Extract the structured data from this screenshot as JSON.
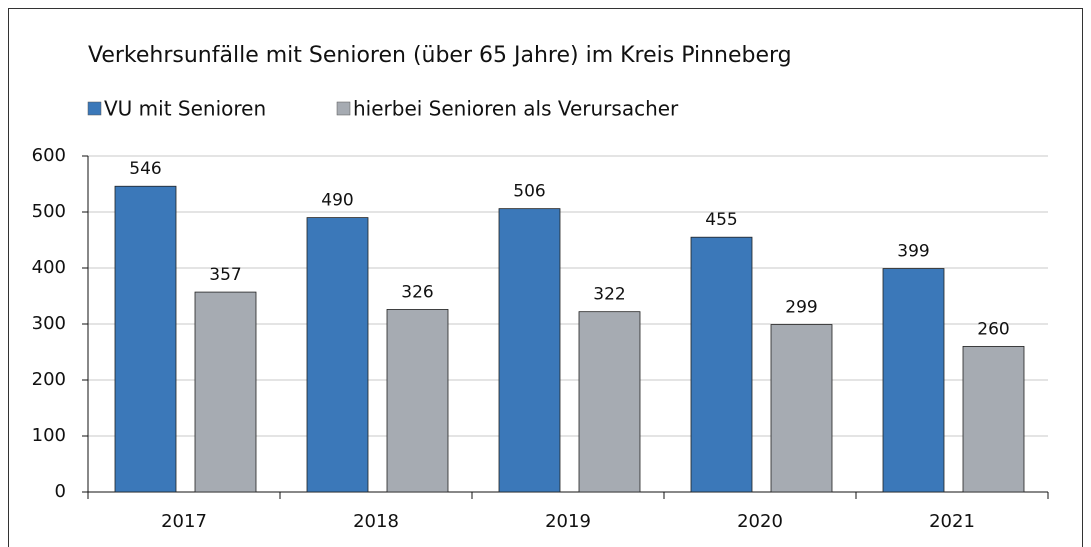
{
  "chart_data": {
    "type": "bar",
    "title": "Verkehrsunfälle mit  Senioren (über 65 Jahre) im Kreis Pinneberg",
    "categories": [
      "2017",
      "2018",
      "2019",
      "2020",
      "2021"
    ],
    "series": [
      {
        "name": "VU mit Senioren",
        "color": "#3b78b9",
        "values": [
          546,
          490,
          506,
          455,
          399
        ]
      },
      {
        "name": "hierbei Senioren als Verursacher",
        "color": "#a6abb2",
        "values": [
          357,
          326,
          322,
          299,
          260
        ]
      }
    ],
    "ylim": [
      0,
      600
    ],
    "yticks": [
      0,
      100,
      200,
      300,
      400,
      500,
      600
    ],
    "grid": true,
    "legend": "top-left"
  }
}
